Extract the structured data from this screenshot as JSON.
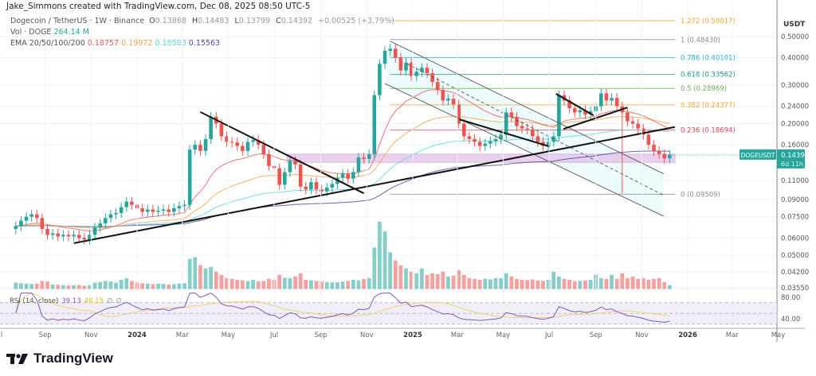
{
  "header": {
    "credit": "Jake_Simmons created with TradingView.com, Dec 08, 2025 08:50 UTC-5"
  },
  "legend": {
    "symbol": "Dogecoin / TetherUS · 1W · Binance",
    "o_label": "O",
    "o": "0.13868",
    "h_label": "H",
    "h": "0.14483",
    "l_label": "L",
    "l": "0.13799",
    "c_label": "C",
    "c": "0.14392",
    "change": "+0.00525 (+3.79%)",
    "vol_label": "Vol · DOGE",
    "vol": "264.14 M",
    "ema_label": "EMA 20/50/100/200",
    "ema20": "0.18757",
    "ema50": "0.19972",
    "ema100": "0.18583",
    "ema200": "0.15563"
  },
  "colors": {
    "up": "#26a69a",
    "down": "#ef5350",
    "ema20": "#ef5a5a",
    "ema50": "#f2a64a",
    "ema100": "#5fd3e3",
    "ema200": "#4a4aa8",
    "rsi": "#7e57c2",
    "rsi_ma": "#f2d26b",
    "zone": "#ce93d8",
    "channel": "#4dd0e1"
  },
  "price_tag": {
    "symbol": "DOGEUSDT",
    "price": "0.14392",
    "countdown": "6d 11h"
  },
  "logo": {
    "text": "TradingView"
  },
  "chart_data": {
    "type": "candlestick",
    "symbol": "DOGEUSDT",
    "interval": "1W",
    "first_week": "2023-07-24",
    "y_scale": "log",
    "ylim": [
      0.0355,
      0.5
    ],
    "y_unit": "USDT",
    "grid": true,
    "closes": [
      0.068,
      0.072,
      0.075,
      0.077,
      0.074,
      0.066,
      0.062,
      0.063,
      0.061,
      0.062,
      0.061,
      0.062,
      0.06,
      0.059,
      0.062,
      0.067,
      0.07,
      0.074,
      0.077,
      0.078,
      0.083,
      0.088,
      0.085,
      0.082,
      0.079,
      0.081,
      0.079,
      0.08,
      0.081,
      0.079,
      0.082,
      0.084,
      0.085,
      0.152,
      0.16,
      0.15,
      0.17,
      0.215,
      0.2,
      0.175,
      0.165,
      0.164,
      0.158,
      0.15,
      0.165,
      0.168,
      0.16,
      0.145,
      0.128,
      0.125,
      0.105,
      0.12,
      0.135,
      0.13,
      0.103,
      0.1,
      0.108,
      0.1,
      0.098,
      0.102,
      0.106,
      0.113,
      0.118,
      0.112,
      0.12,
      0.14,
      0.138,
      0.145,
      0.27,
      0.375,
      0.43,
      0.44,
      0.4,
      0.35,
      0.38,
      0.33,
      0.345,
      0.36,
      0.34,
      0.31,
      0.285,
      0.255,
      0.26,
      0.245,
      0.2,
      0.175,
      0.17,
      0.165,
      0.158,
      0.162,
      0.166,
      0.17,
      0.178,
      0.225,
      0.215,
      0.195,
      0.19,
      0.188,
      0.175,
      0.165,
      0.158,
      0.165,
      0.175,
      0.27,
      0.255,
      0.235,
      0.225,
      0.23,
      0.22,
      0.228,
      0.24,
      0.275,
      0.255,
      0.262,
      0.24,
      0.225,
      0.205,
      0.2,
      0.19,
      0.178,
      0.16,
      0.15,
      0.145,
      0.13868,
      0.14392
    ],
    "last_open": 0.13868,
    "notable_lows": [
      {
        "date": "2025-10-06",
        "low": 0.096
      }
    ],
    "volume_m": [
      420,
      380,
      350,
      330,
      360,
      520,
      480,
      300,
      280,
      260,
      240,
      250,
      270,
      230,
      260,
      420,
      460,
      520,
      480,
      420,
      600,
      700,
      520,
      430,
      380,
      360,
      330,
      350,
      340,
      300,
      320,
      360,
      380,
      1900,
      2000,
      1500,
      1300,
      1400,
      1100,
      900,
      700,
      650,
      600,
      560,
      520,
      600,
      500,
      520,
      650,
      600,
      900,
      720,
      700,
      800,
      1000,
      600,
      560,
      520,
      480,
      450,
      430,
      440,
      480,
      520,
      600,
      560,
      640,
      700,
      2600,
      4200,
      3600,
      2300,
      1800,
      1500,
      1300,
      1100,
      1000,
      1300,
      900,
      1000,
      950,
      1100,
      800,
      850,
      1200,
      900,
      700,
      650,
      600,
      650,
      620,
      700,
      700,
      1000,
      800,
      650,
      600,
      580,
      620,
      550,
      520,
      600,
      1100,
      800,
      650,
      600,
      500,
      520,
      550,
      600,
      900,
      700,
      650,
      900,
      650,
      1000,
      700,
      800,
      650,
      700,
      600,
      650,
      700,
      450,
      264.14
    ],
    "price_ticks": [
      "0.50000",
      "0.40000",
      "0.30000",
      "0.24000",
      "0.20000",
      "0.16000",
      "0.11000",
      "0.09000",
      "0.07500",
      "0.06000",
      "0.05000",
      "0.04200",
      "0.03550"
    ],
    "rsi": {
      "label": "RSI (14, close)",
      "value": "39.13",
      "ma_value": "46.15",
      "extra1": "∅",
      "extra2": "∅",
      "ticks": [
        "80.00",
        "40.00"
      ],
      "bands": [
        70,
        50,
        30
      ]
    },
    "time_ticks": [
      {
        "label": "Jul",
        "date": "2023-07-01"
      },
      {
        "label": "Sep",
        "date": "2023-09-01"
      },
      {
        "label": "Nov",
        "date": "2023-11-01"
      },
      {
        "label": "2024",
        "date": "2024-01-01",
        "bold": true
      },
      {
        "label": "Mar",
        "date": "2024-03-01"
      },
      {
        "label": "May",
        "date": "2024-05-01"
      },
      {
        "label": "Jul",
        "date": "2024-07-01"
      },
      {
        "label": "Sep",
        "date": "2024-09-01"
      },
      {
        "label": "Nov",
        "date": "2024-11-01"
      },
      {
        "label": "2025",
        "date": "2025-01-01",
        "bold": true
      },
      {
        "label": "Mar",
        "date": "2025-03-01"
      },
      {
        "label": "May",
        "date": "2025-05-01"
      },
      {
        "label": "Jul",
        "date": "2025-07-01"
      },
      {
        "label": "Sep",
        "date": "2025-09-01"
      },
      {
        "label": "Nov",
        "date": "2025-11-01"
      },
      {
        "label": "2026",
        "date": "2026-01-01",
        "bold": true
      },
      {
        "label": "Mar",
        "date": "2026-03-01"
      },
      {
        "label": "May",
        "date": "2026-05-01"
      }
    ],
    "fib": {
      "from": "2024-12-02",
      "to": "2025-12-15",
      "levels": [
        {
          "label": "1.272 (0.59017)",
          "price": 0.59017,
          "color": "#f0a830"
        },
        {
          "label": "1 (0.48430)",
          "price": 0.4843,
          "color": "#8a8a8a"
        },
        {
          "label": "0.786 (0.40101)",
          "price": 0.40101,
          "color": "#22b5c8"
        },
        {
          "label": "0.618 (0.33562)",
          "price": 0.33562,
          "color": "#1e9a8a"
        },
        {
          "label": "0.5 (0.28969)",
          "price": 0.28969,
          "color": "#6cae5a"
        },
        {
          "label": "0.382 (0.24377)",
          "price": 0.24377,
          "color": "#f0a830"
        },
        {
          "label": "0.236 (0.18694)",
          "price": 0.18694,
          "color": "#e0445a"
        },
        {
          "label": "0 (0.09509)",
          "price": 0.09509,
          "color": "#8a8a8a"
        }
      ]
    },
    "zone": {
      "from": "2024-07-18",
      "to": "2025-12-15",
      "low": 0.133,
      "high": 0.145
    },
    "trendlines": [
      {
        "from": [
          "2023-10-09",
          0.0568
        ],
        "to": [
          "2025-12-15",
          0.193
        ],
        "style": "solid"
      },
      {
        "from": [
          "2024-03-25",
          0.226
        ],
        "to": [
          "2024-10-28",
          0.096
        ],
        "style": "solid"
      },
      {
        "from": [
          "2025-03-04",
          0.209
        ],
        "to": [
          "2025-07-02",
          0.157
        ],
        "style": "solid"
      },
      {
        "from": [
          "2025-07-10",
          0.274
        ],
        "to": [
          "2025-08-29",
          0.218
        ],
        "style": "solid"
      },
      {
        "from": [
          "2025-07-20",
          0.189
        ],
        "to": [
          "2025-10-13",
          0.237
        ],
        "style": "solid"
      }
    ],
    "channel": {
      "upper": {
        "from": [
          "2024-12-02",
          0.476
        ],
        "to": [
          "2025-11-30",
          0.118
        ]
      },
      "lower": {
        "from": [
          "2024-11-25",
          0.305
        ],
        "to": [
          "2025-11-30",
          0.0755
        ]
      },
      "middle": {
        "from": [
          "2024-12-24",
          0.376
        ],
        "to": [
          "2025-11-30",
          0.094
        ]
      }
    }
  }
}
